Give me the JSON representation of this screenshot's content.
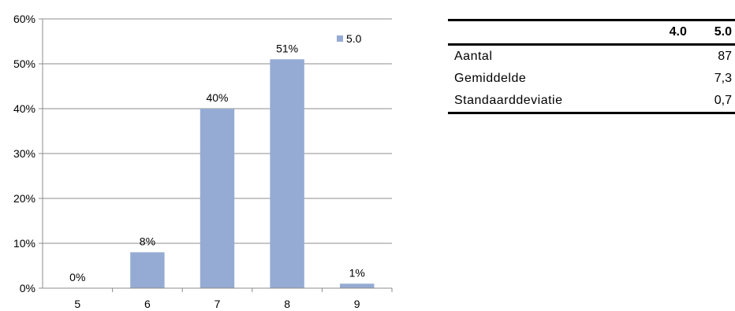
{
  "chart_data": {
    "type": "bar",
    "categories": [
      "5",
      "6",
      "7",
      "8",
      "9"
    ],
    "series": [
      {
        "name": "5.0",
        "values": [
          0,
          8,
          40,
          51,
          1
        ],
        "color": "#95abd3"
      }
    ],
    "data_labels": [
      "0%",
      "8%",
      "40%",
      "51%",
      "1%"
    ],
    "y_ticks": [
      "0%",
      "10%",
      "20%",
      "30%",
      "40%",
      "50%",
      "60%"
    ],
    "ylim": [
      0,
      60
    ],
    "grid": true,
    "legend_position": "top-right"
  },
  "stats_table": {
    "headers": [
      "",
      "4.0",
      "5.0"
    ],
    "rows": [
      {
        "label": "Aantal",
        "v40": "",
        "v50": "87"
      },
      {
        "label": "Gemiddelde",
        "v40": "",
        "v50": "7,3"
      },
      {
        "label": "Standaarddeviatie",
        "v40": "",
        "v50": "0,7"
      }
    ]
  }
}
